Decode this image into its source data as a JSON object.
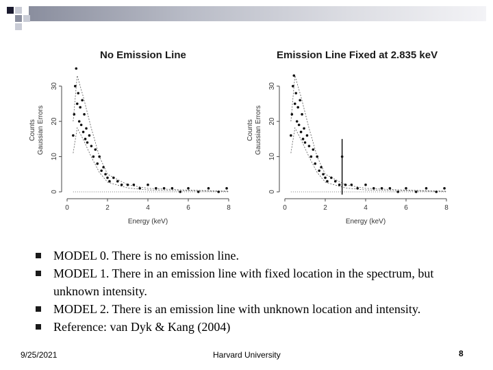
{
  "slide": {
    "footer_date": "9/25/2021",
    "footer_center": "Harvard University",
    "page_number": "8",
    "accent_colors": [
      "#1a1a2e",
      "#8a8e9e",
      "#c9ccd6"
    ],
    "bullets": [
      "MODEL 0. There is no emission line.",
      "MODEL 1. There in an emission line with fixed location in the spectrum, but unknown intensity.",
      "MODEL 2. There is an emission line with unknown location and intensity.",
      "Reference: van Dyk & Kang (2004)"
    ]
  },
  "chart_data": [
    {
      "type": "scatter",
      "title": "No Emission Line",
      "xlabel": "Energy (keV)",
      "ylabel": "Counts\nGaussian Errors",
      "xlim": [
        0,
        8
      ],
      "ylim": [
        0,
        35
      ],
      "x_ticks": [
        "0",
        "2",
        "4",
        "6",
        "8"
      ],
      "y_ticks": [
        "0",
        "10",
        "20",
        "30"
      ],
      "series": [
        {
          "values": [
            [
              0.3,
              16
            ],
            [
              0.35,
              22
            ],
            [
              0.4,
              30
            ],
            [
              0.45,
              35
            ],
            [
              0.5,
              25
            ],
            [
              0.55,
              28
            ],
            [
              0.6,
              20
            ],
            [
              0.65,
              24
            ],
            [
              0.7,
              19
            ],
            [
              0.75,
              26
            ],
            [
              0.8,
              17
            ],
            [
              0.85,
              22
            ],
            [
              0.9,
              15
            ],
            [
              0.95,
              18
            ],
            [
              1.0,
              14
            ],
            [
              1.1,
              16
            ],
            [
              1.2,
              13
            ],
            [
              1.3,
              10
            ],
            [
              1.4,
              12
            ],
            [
              1.5,
              8
            ],
            [
              1.6,
              10
            ],
            [
              1.7,
              6
            ],
            [
              1.8,
              7
            ],
            [
              1.9,
              5
            ],
            [
              2.0,
              4
            ],
            [
              2.1,
              3
            ],
            [
              2.3,
              4
            ],
            [
              2.5,
              3
            ],
            [
              2.7,
              2
            ],
            [
              3.0,
              2
            ],
            [
              3.3,
              2
            ],
            [
              3.6,
              1
            ],
            [
              4.0,
              2
            ],
            [
              4.4,
              1
            ],
            [
              4.8,
              1
            ],
            [
              5.2,
              1
            ],
            [
              5.6,
              0
            ],
            [
              6.0,
              1
            ],
            [
              6.5,
              0
            ],
            [
              7.0,
              1
            ],
            [
              7.5,
              0
            ],
            [
              7.9,
              1
            ]
          ]
        }
      ],
      "model_curve": [
        [
          0.3,
          20
        ],
        [
          0.5,
          33
        ],
        [
          0.8,
          27
        ],
        [
          1.2,
          18
        ],
        [
          1.6,
          10
        ],
        [
          2.0,
          5
        ],
        [
          3.0,
          2
        ],
        [
          4.0,
          1
        ],
        [
          6.0,
          0.5
        ],
        [
          8.0,
          0.2
        ]
      ]
    },
    {
      "type": "scatter",
      "title": "Emission Line Fixed at 2.835 keV",
      "xlabel": "Energy (keV)",
      "ylabel": "Counts\nGaussian Errors",
      "xlim": [
        0,
        8
      ],
      "ylim": [
        0,
        35
      ],
      "x_ticks": [
        "0",
        "2",
        "4",
        "6",
        "8"
      ],
      "y_ticks": [
        "0",
        "10",
        "20",
        "30"
      ],
      "line_location_kev": 2.835,
      "series": [
        {
          "values": [
            [
              0.3,
              16
            ],
            [
              0.35,
              22
            ],
            [
              0.4,
              30
            ],
            [
              0.45,
              33
            ],
            [
              0.5,
              25
            ],
            [
              0.55,
              28
            ],
            [
              0.6,
              20
            ],
            [
              0.65,
              24
            ],
            [
              0.7,
              19
            ],
            [
              0.75,
              26
            ],
            [
              0.8,
              17
            ],
            [
              0.85,
              22
            ],
            [
              0.9,
              15
            ],
            [
              0.95,
              18
            ],
            [
              1.0,
              14
            ],
            [
              1.1,
              16
            ],
            [
              1.2,
              13
            ],
            [
              1.3,
              10
            ],
            [
              1.4,
              12
            ],
            [
              1.5,
              8
            ],
            [
              1.6,
              10
            ],
            [
              1.7,
              6
            ],
            [
              1.8,
              7
            ],
            [
              1.9,
              5
            ],
            [
              2.0,
              4
            ],
            [
              2.1,
              3
            ],
            [
              2.3,
              4
            ],
            [
              2.5,
              3
            ],
            [
              2.7,
              2
            ],
            [
              2.835,
              10
            ],
            [
              3.0,
              2
            ],
            [
              3.3,
              2
            ],
            [
              3.6,
              1
            ],
            [
              4.0,
              2
            ],
            [
              4.4,
              1
            ],
            [
              4.8,
              1
            ],
            [
              5.2,
              1
            ],
            [
              5.6,
              0
            ],
            [
              6.0,
              1
            ],
            [
              6.5,
              0
            ],
            [
              7.0,
              1
            ],
            [
              7.5,
              0
            ],
            [
              7.9,
              1
            ]
          ]
        }
      ],
      "model_curve": [
        [
          0.3,
          20
        ],
        [
          0.5,
          33
        ],
        [
          0.8,
          27
        ],
        [
          1.2,
          18
        ],
        [
          1.6,
          10
        ],
        [
          2.0,
          5
        ],
        [
          3.0,
          2
        ],
        [
          4.0,
          1
        ],
        [
          6.0,
          0.5
        ],
        [
          8.0,
          0.2
        ]
      ]
    }
  ]
}
